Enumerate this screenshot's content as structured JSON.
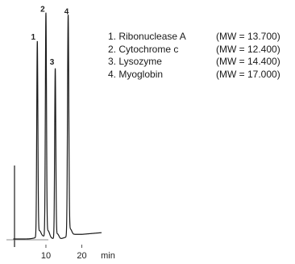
{
  "chart_data": {
    "type": "line",
    "title": "",
    "xlabel": "min",
    "ylabel": "",
    "x_ticks": [
      {
        "value": 10,
        "label": "10"
      },
      {
        "value": 20,
        "label": "20"
      }
    ],
    "x_unit_label": "min",
    "xlim": [
      -1,
      30
    ],
    "ylim": [
      0,
      1
    ],
    "grid": false,
    "legend_placement": "top-right",
    "series": [
      {
        "peaks": [
          {
            "label": "1",
            "time": 7.6,
            "height": 0.84,
            "width": 0.22
          },
          {
            "label": "2",
            "time": 10.0,
            "height": 0.96,
            "width": 0.22
          },
          {
            "label": "3",
            "time": 12.6,
            "height": 0.73,
            "width": 0.22
          },
          {
            "label": "4",
            "time": 16.2,
            "height": 0.95,
            "width": 0.25
          }
        ]
      }
    ],
    "legend": [
      {
        "name": "1. Ribonuclease A",
        "mw": "(MW = 13.700)"
      },
      {
        "name": "2. Cytochrome c",
        "mw": "(MW = 12.400)"
      },
      {
        "name": "3. Lysozyme",
        "mw": "(MW = 14.400)"
      },
      {
        "name": "4. Myoglobin",
        "mw": "(MW = 17.000)"
      }
    ]
  },
  "colors": {
    "trace": "#1a1a1a",
    "axis": "#444444",
    "background": "#ffffff"
  }
}
